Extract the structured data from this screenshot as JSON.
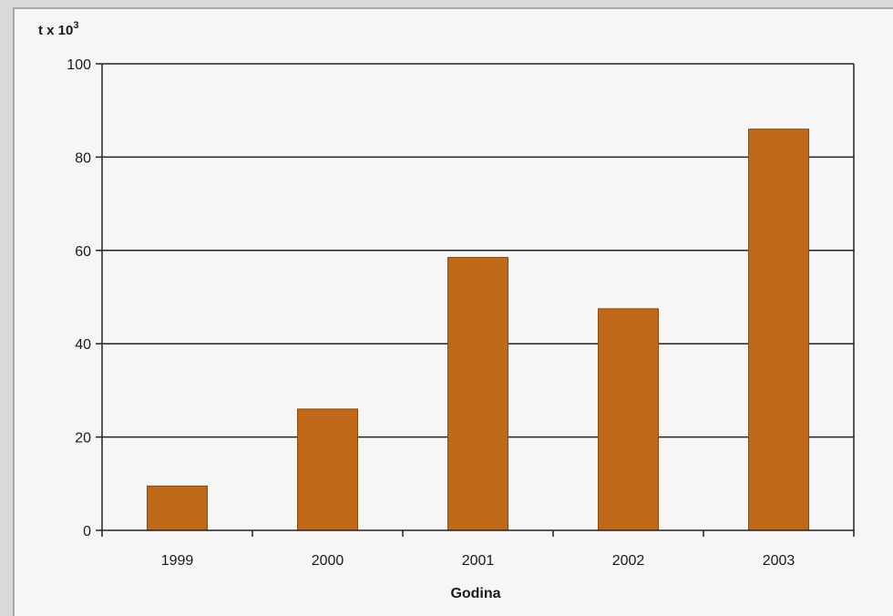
{
  "chart_data": {
    "type": "bar",
    "title": "",
    "ylabel_base": "t x 10",
    "ylabel_exp": "3",
    "xlabel": "Godina",
    "categories": [
      "1999",
      "2000",
      "2001",
      "2002",
      "2003"
    ],
    "values": [
      9.5,
      26,
      58.5,
      47.5,
      86
    ],
    "ylim": [
      0,
      100
    ],
    "yticks": [
      "0",
      "20",
      "40",
      "60",
      "80",
      "100"
    ],
    "grid": true,
    "bar_color": "#c0691a",
    "bar_edge_color": "#8a4a10"
  }
}
